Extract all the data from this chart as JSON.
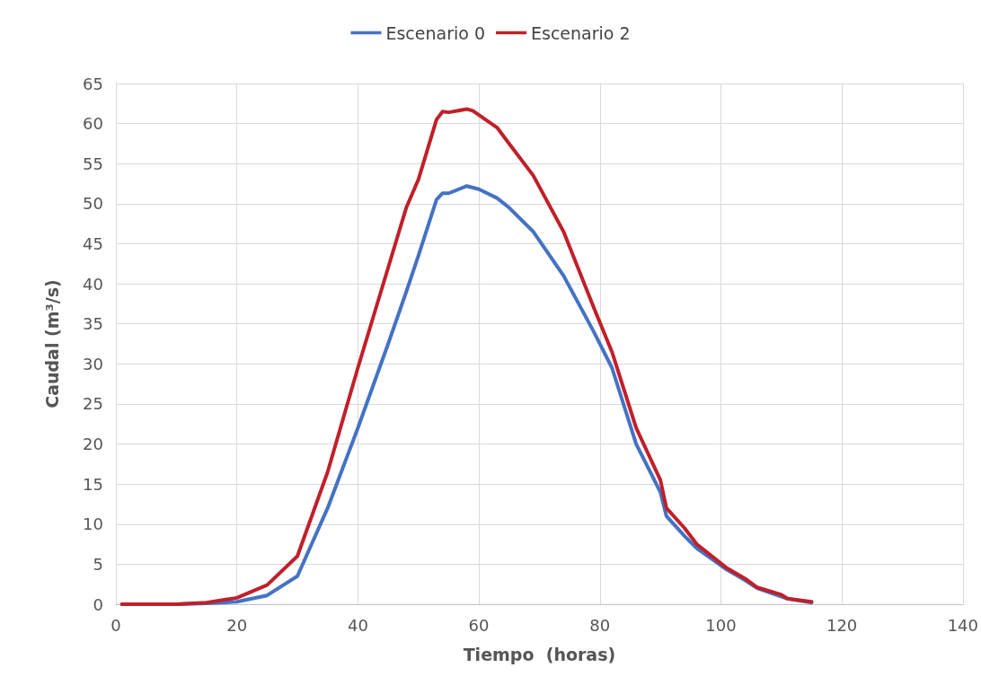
{
  "chart_data": {
    "type": "line",
    "xlabel": "Tiempo  (horas)",
    "ylabel": "Caudal (m³/s)",
    "xlim": [
      0,
      140
    ],
    "xticks": [
      0,
      20,
      40,
      60,
      80,
      100,
      120,
      140
    ],
    "ylim": [
      0,
      65
    ],
    "yticks": [
      0,
      5,
      10,
      15,
      20,
      25,
      30,
      35,
      40,
      45,
      50,
      55,
      60,
      65
    ],
    "grid": true,
    "legend": "top",
    "marker": "none",
    "line_style": "solid",
    "series": [
      {
        "name": "Escenario 0",
        "color": "#4472c4",
        "x": [
          1,
          10,
          15,
          20,
          25,
          30,
          35,
          40,
          45,
          48,
          50,
          53,
          54,
          55,
          58,
          60,
          63,
          65,
          69,
          74,
          79,
          82,
          86,
          90,
          91,
          94,
          96,
          101,
          104,
          106,
          111,
          115
        ],
        "values": [
          0,
          0,
          0.1,
          0.3,
          1.1,
          3.5,
          12,
          22,
          32.5,
          39,
          43.5,
          50.5,
          51.3,
          51.3,
          52.2,
          51.8,
          50.7,
          49.5,
          46.5,
          41,
          34,
          29.5,
          20,
          14,
          11,
          8.5,
          7,
          4.3,
          3,
          2,
          0.7,
          0.2
        ]
      },
      {
        "name": "Escenario 2",
        "color": "#c0202a",
        "x": [
          1,
          10,
          15,
          20,
          25,
          30,
          35,
          40,
          45,
          48,
          50,
          53,
          54,
          55,
          58,
          59,
          63,
          65,
          69,
          74,
          79,
          82,
          86,
          90,
          91,
          94,
          96,
          101,
          104,
          106,
          110,
          111,
          115
        ],
        "values": [
          0,
          0,
          0.2,
          0.8,
          2.4,
          6,
          16.5,
          29.5,
          42,
          49.5,
          53,
          60.5,
          61.5,
          61.4,
          61.8,
          61.6,
          59.5,
          57.5,
          53.5,
          46.5,
          37,
          31.5,
          22,
          15.5,
          12,
          9.5,
          7.5,
          4.5,
          3.2,
          2.1,
          1.2,
          0.7,
          0.3
        ]
      }
    ]
  }
}
